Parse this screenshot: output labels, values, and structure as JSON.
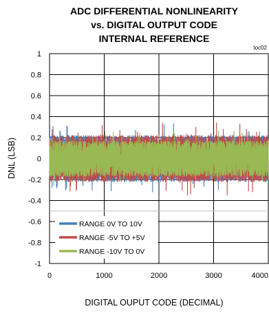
{
  "chart_data": {
    "type": "line",
    "title_lines": [
      "ADC DIFFERENTIAL NONLINEARITY",
      "vs. DIGITAL OUTPUT CODE",
      "INTERNAL REFERENCE"
    ],
    "figure_code": "toc02",
    "xlabel": "DIGITAL OUPUT CODE (DECIMAL)",
    "ylabel": "DNL (LSB)",
    "xlim": [
      0,
      4000
    ],
    "ylim": [
      -1,
      1
    ],
    "xticks": [
      "0",
      "1000",
      "2000",
      "3000",
      "4000"
    ],
    "yticks": [
      "1",
      "0.8",
      "0.6",
      "0.4",
      "0.2",
      "0",
      "-0.2",
      "-0.4",
      "-0.6",
      "-0.8",
      "-1"
    ],
    "grid": "major gridlines on both axes",
    "legend_position": "bottom-left",
    "reference_line_y": -0.5,
    "series": [
      {
        "name": "RANGE 0V TO 10V",
        "color": "#4a7ebb",
        "band": [
          -0.22,
          0.22
        ],
        "spike_max": 0.34,
        "spike_min": -0.32
      },
      {
        "name": "RANGE -5V TO +5V",
        "color": "#be4b48",
        "band": [
          -0.22,
          0.22
        ],
        "spike_max": 0.37,
        "spike_min": -0.35
      },
      {
        "name": "RANGE -10V TO 0V",
        "color": "#98b954",
        "band": [
          -0.17,
          0.17
        ],
        "spike_max": 0.27,
        "spike_min": -0.26
      }
    ]
  }
}
